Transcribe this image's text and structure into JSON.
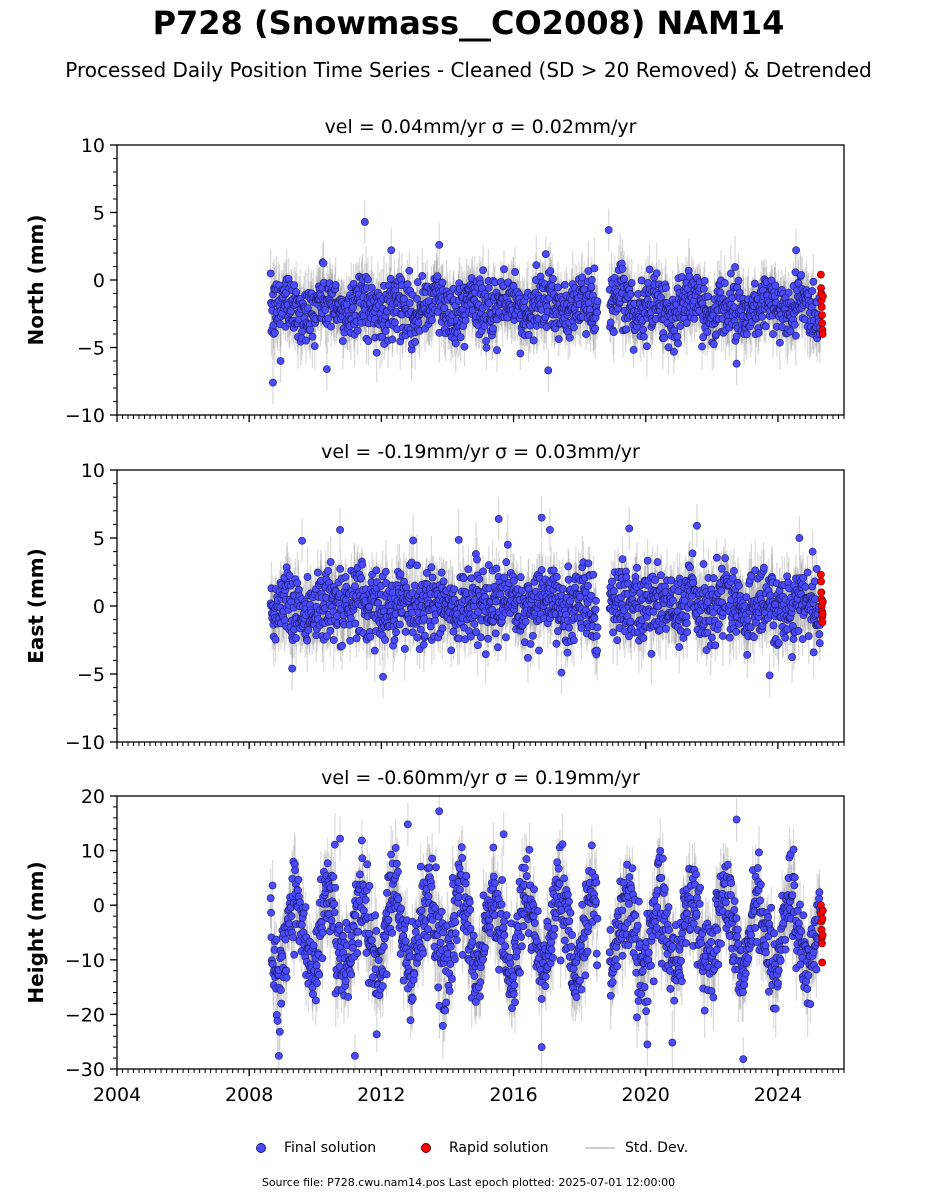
{
  "title": "P728 (Snowmass__CO2008) NAM14",
  "subtitle": "Processed Daily Position Time Series - Cleaned (SD > 20 Removed) & Detrended",
  "legend": {
    "final": "Final solution",
    "rapid": "Rapid solution",
    "stddev": "Std. Dev."
  },
  "footer": "Source file: P728.cwu.nam14.pos  Last epoch plotted: 2025-07-01 12:00:00",
  "colors": {
    "final": "#4a4aff",
    "final_edge": "#1a1a5a",
    "rapid": "#ff0000",
    "stddev": "#808080"
  },
  "chart_data": [
    {
      "type": "scatter",
      "panel_title": "vel = 0.04mm/yr   σ = 0.02mm/yr",
      "ylabel": "North (mm)",
      "xlim": [
        2004,
        2026
      ],
      "ylim": [
        -10,
        10
      ],
      "yticks": [
        -10,
        -5,
        0,
        5,
        10
      ],
      "xticks": [
        2004,
        2008,
        2012,
        2016,
        2020,
        2024
      ],
      "show_xtick_labels": false,
      "series": [
        {
          "name": "Final solution",
          "data_start": 2008.65,
          "data_end": 2025.28,
          "gap": [
            2018.55,
            2018.9
          ],
          "typical_mean": -2.0,
          "typical_spread": 1.3,
          "outliers": [
            [
              2008.72,
              -7.6
            ],
            [
              2010.35,
              -6.6
            ],
            [
              2011.5,
              4.3
            ],
            [
              2013.75,
              2.6
            ],
            [
              2012.3,
              2.2
            ],
            [
              2015.5,
              -5.2
            ],
            [
              2018.88,
              3.7
            ],
            [
              2022.75,
              -6.2
            ],
            [
              2024.55,
              2.2
            ],
            [
              2008.95,
              -6.0
            ],
            [
              2017.05,
              -6.7
            ]
          ]
        },
        {
          "name": "Rapid solution",
          "x_start": 2025.3,
          "x_end": 2025.5,
          "values": [
            0.4,
            -0.6,
            -1.0,
            -1.5,
            -2.0,
            -2.6,
            -3.2,
            -3.7,
            -4.0,
            -1.2
          ]
        }
      ]
    },
    {
      "type": "scatter",
      "panel_title": "vel = -0.19mm/yr   σ = 0.03mm/yr",
      "ylabel": "East (mm)",
      "xlim": [
        2004,
        2026
      ],
      "ylim": [
        -10,
        10
      ],
      "yticks": [
        -10,
        -5,
        0,
        5,
        10
      ],
      "xticks": [
        2004,
        2008,
        2012,
        2016,
        2020,
        2024
      ],
      "show_xtick_labels": false,
      "series": [
        {
          "name": "Final solution",
          "data_start": 2008.65,
          "data_end": 2025.28,
          "gap": [
            2018.55,
            2018.9
          ],
          "typical_mean": 0.0,
          "typical_spread": 1.6,
          "outliers": [
            [
              2010.75,
              5.6
            ],
            [
              2015.55,
              6.4
            ],
            [
              2016.85,
              6.5
            ],
            [
              2017.1,
              5.6
            ],
            [
              2019.5,
              5.7
            ],
            [
              2021.55,
              5.9
            ],
            [
              2012.05,
              -5.2
            ],
            [
              2017.45,
              -4.9
            ],
            [
              2023.75,
              -5.1
            ],
            [
              2009.3,
              -4.6
            ],
            [
              2009.6,
              4.8
            ],
            [
              2024.65,
              5.0
            ],
            [
              2025.05,
              4.0
            ]
          ]
        },
        {
          "name": "Rapid solution",
          "x_start": 2025.3,
          "x_end": 2025.5,
          "values": [
            2.3,
            1.8,
            1.0,
            0.5,
            0.0,
            -0.4,
            -0.8,
            -1.2,
            -0.6,
            0.3
          ]
        }
      ]
    },
    {
      "type": "scatter",
      "panel_title": "vel = -0.60mm/yr   σ = 0.19mm/yr",
      "ylabel": "Height (mm)",
      "xlim": [
        2004,
        2026
      ],
      "ylim": [
        -30,
        20
      ],
      "yticks": [
        -30,
        -20,
        -10,
        0,
        10,
        20
      ],
      "xticks": [
        2004,
        2008,
        2012,
        2016,
        2020,
        2024
      ],
      "show_xtick_labels": true,
      "xtick_labels": [
        "2004",
        "2008",
        "2012",
        "2016",
        "2020",
        "2024"
      ],
      "series": [
        {
          "name": "Final solution",
          "data_start": 2008.65,
          "data_end": 2025.28,
          "gap": [
            2018.55,
            2018.9
          ],
          "typical_mean": -5.0,
          "typical_spread": 6.5,
          "seasonal_amplitude": 7.0,
          "outliers": [
            [
              2013.75,
              17.2
            ],
            [
              2012.8,
              14.8
            ],
            [
              2015.7,
              13.0
            ],
            [
              2022.75,
              15.7
            ],
            [
              2008.9,
              -27.6
            ],
            [
              2011.2,
              -27.6
            ],
            [
              2016.85,
              -26.0
            ],
            [
              2022.95,
              -28.2
            ],
            [
              2020.05,
              -25.5
            ],
            [
              2010.75,
              12.2
            ]
          ]
        },
        {
          "name": "Rapid solution",
          "x_start": 2025.3,
          "x_end": 2025.5,
          "values": [
            0.0,
            -1.5,
            -3.0,
            -4.5,
            -6.0,
            -7.0,
            -10.5,
            -2.5,
            -5.5,
            -1.0
          ]
        }
      ]
    }
  ]
}
